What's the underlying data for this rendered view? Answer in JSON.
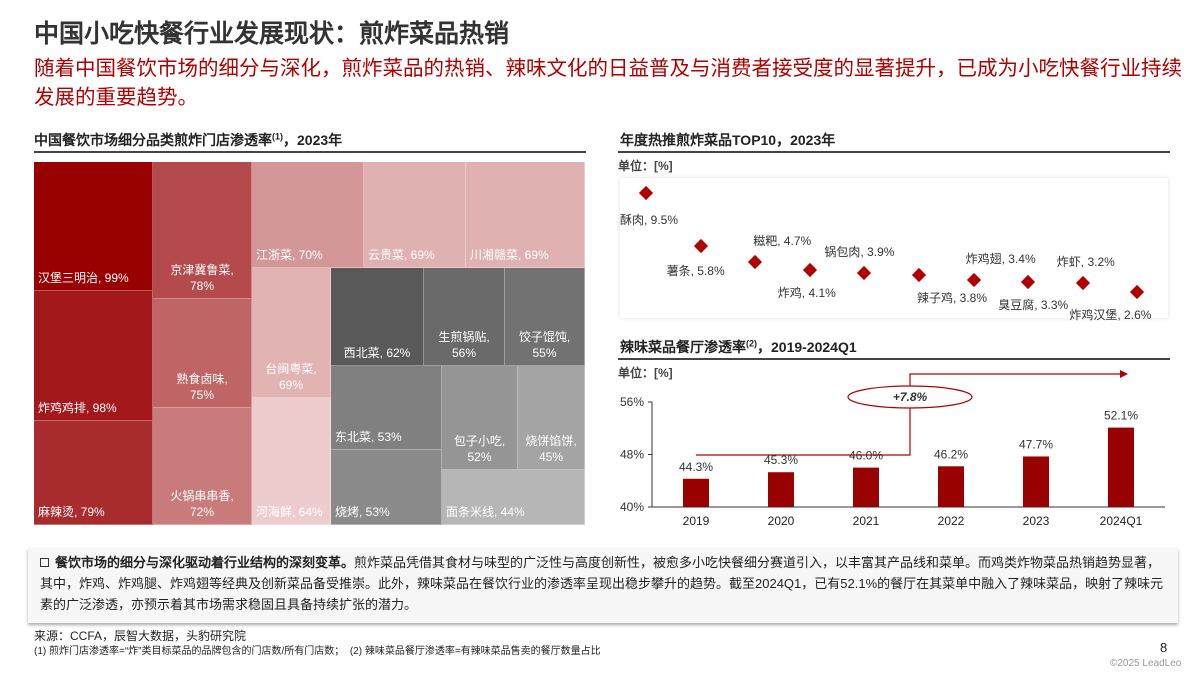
{
  "title": "中国小吃快餐行业发展现状：煎炸菜品热销",
  "subtitle": "随着中国餐饮市场的细分与深化，煎炸菜品的热销、辣味文化的日益普及与消费者接受度的显著提升，已成为小吃快餐行业持续发展的重要趋势。",
  "accent": "#990000",
  "chart_data": [
    {
      "type": "treemap",
      "title": "中国餐饮市场细分品类煎炸门店渗透率",
      "title_sup": "(1)",
      "title_suffix": "，2023年",
      "items": [
        {
          "label": "汉堡三明治, 99%",
          "value": 99,
          "color": "#990000"
        },
        {
          "label": "炸鸡鸡排, 98%",
          "value": 98,
          "color": "#a3191b"
        },
        {
          "label": "麻辣烫, 79%",
          "value": 79,
          "color": "#a82b2d"
        },
        {
          "label": "京津冀鲁菜, 78%",
          "value": 78,
          "color": "#b44a4b"
        },
        {
          "label": "熟食卤味, 75%",
          "value": 75,
          "color": "#c06565"
        },
        {
          "label": "火锅串串香, 72%",
          "value": 72,
          "color": "#c97b7b"
        },
        {
          "label": "江浙菜, 70%",
          "value": 70,
          "color": "#d49797"
        },
        {
          "label": "云贵菜, 69%",
          "value": 69,
          "color": "#e0b1b1"
        },
        {
          "label": "川湘赣菜, 69%",
          "value": 69,
          "color": "#e0b1b1"
        },
        {
          "label": "台闽粤菜, 69%",
          "value": 69,
          "color": "#e2b3b3"
        },
        {
          "label": "河海鲜, 64%",
          "value": 64,
          "color": "#eccccc"
        },
        {
          "label": "西北菜, 62%",
          "value": 62,
          "color": "#595959"
        },
        {
          "label": "生煎锅贴, 56%",
          "value": 56,
          "color": "#6a6a6a"
        },
        {
          "label": "饺子馄饨, 55%",
          "value": 55,
          "color": "#727272"
        },
        {
          "label": "东北菜, 53%",
          "value": 53,
          "color": "#808080"
        },
        {
          "label": "烧烤, 53%",
          "value": 53,
          "color": "#8a8a8a"
        },
        {
          "label": "包子小吃, 52%",
          "value": 52,
          "color": "#959595"
        },
        {
          "label": "烧饼馅饼, 45%",
          "value": 45,
          "color": "#a4a4a4"
        },
        {
          "label": "面条米线, 44%",
          "value": 44,
          "color": "#b6b6b6"
        }
      ]
    },
    {
      "type": "scatter",
      "title": "年度热推煎炸菜品TOP10，2023年",
      "unit": "单位：[%]",
      "points": [
        {
          "label": "酥肉, 9.5%",
          "value": 9.5
        },
        {
          "label": "薯条, 5.8%",
          "value": 5.8
        },
        {
          "label": "糍粑, 4.7%",
          "value": 4.7
        },
        {
          "label": "炸鸡, 4.1%",
          "value": 4.1
        },
        {
          "label": "锅包肉, 3.9%",
          "value": 3.9
        },
        {
          "label": "辣子鸡, 3.8%",
          "value": 3.8
        },
        {
          "label": "炸鸡翅, 3.4%",
          "value": 3.4
        },
        {
          "label": "臭豆腐, 3.3%",
          "value": 3.3
        },
        {
          "label": "炸虾, 3.2%",
          "value": 3.2
        },
        {
          "label": "炸鸡汉堡, 2.6%",
          "value": 2.6
        }
      ],
      "color": "#b00000"
    },
    {
      "type": "bar",
      "title": "辣味菜品餐厅渗透率",
      "title_sup": "(2)",
      "title_suffix": "，2019-2024Q1",
      "unit": "单位：[%]",
      "categories": [
        "2019",
        "2020",
        "2021",
        "2022",
        "2023",
        "2024Q1"
      ],
      "values": [
        44.3,
        45.3,
        46.0,
        46.2,
        47.7,
        52.1
      ],
      "labels": [
        "44.3%",
        "45.3%",
        "46.0%",
        "46.2%",
        "47.7%",
        "52.1%"
      ],
      "ylim": [
        40,
        56
      ],
      "yticks": [
        "40%",
        "48%",
        "56%"
      ],
      "annotation": "+7.8%",
      "color": "#990000"
    }
  ],
  "note": {
    "bold": "餐饮市场的细分与深化驱动着行业结构的深刻变革。",
    "text": "煎炸菜品凭借其食材与味型的广泛性与高度创新性，被愈多小吃快餐细分赛道引入，以丰富其产品线和菜单。而鸡类炸物菜品热销趋势显著，其中，炸鸡、炸鸡腿、炸鸡翅等经典及创新菜品备受推崇。此外，辣味菜品在餐饮行业的渗透率呈现出稳步攀升的趋势。截至2024Q1，已有52.1%的餐厅在其菜单中融入了辣味菜品，映射了辣味元素的广泛渗透，亦预示着其市场需求稳固且具备持续扩张的潜力。"
  },
  "footer": {
    "source": "来源：CCFA，辰智大数据，头豹研究院",
    "fn1": "(1) 煎炸门店渗透率=“炸”类目标菜品的品牌包含的门店数/所有门店数；",
    "fn2": "(2) 辣味菜品餐厅渗透率=有辣味菜品售卖的餐厅数量占比",
    "page": "8",
    "copyright": "©2025 LeadLeo"
  }
}
